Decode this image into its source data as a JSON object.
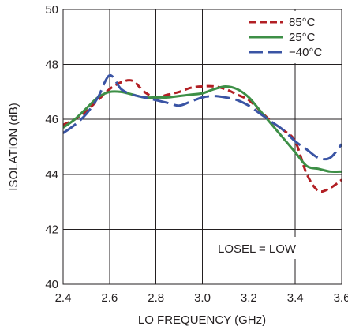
{
  "chart_data": {
    "type": "line",
    "xlabel": "LO FREQUENCY (GHz)",
    "ylabel": "ISOLATION (dB)",
    "xlim": [
      2.4,
      3.6
    ],
    "ylim": [
      40,
      50
    ],
    "xticks": [
      "2.4",
      "2.6",
      "2.8",
      "3.0",
      "3.2",
      "3.4",
      "3.6"
    ],
    "yticks": [
      "40",
      "42",
      "44",
      "46",
      "48",
      "50"
    ],
    "grid": true,
    "legend_position": "top-right",
    "annotation": "LOSEL = LOW",
    "series": [
      {
        "name": "85°C",
        "color": "#b21f24",
        "dash": "dashed",
        "x": [
          2.4,
          2.45,
          2.5,
          2.55,
          2.6,
          2.65,
          2.7,
          2.75,
          2.8,
          2.85,
          2.9,
          2.95,
          3.0,
          3.05,
          3.1,
          3.15,
          3.2,
          3.25,
          3.3,
          3.35,
          3.4,
          3.45,
          3.5,
          3.55,
          3.6
        ],
        "values": [
          45.8,
          46.0,
          46.3,
          46.7,
          47.1,
          47.35,
          47.4,
          47.0,
          46.8,
          46.9,
          47.0,
          47.15,
          47.2,
          47.2,
          47.1,
          46.9,
          46.7,
          46.3,
          45.9,
          45.6,
          45.2,
          44.0,
          43.4,
          43.5,
          43.8
        ]
      },
      {
        "name": "25°C",
        "color": "#3d8f46",
        "dash": "solid",
        "x": [
          2.4,
          2.45,
          2.5,
          2.55,
          2.6,
          2.65,
          2.7,
          2.75,
          2.8,
          2.85,
          2.9,
          2.95,
          3.0,
          3.05,
          3.1,
          3.15,
          3.2,
          3.25,
          3.3,
          3.35,
          3.4,
          3.45,
          3.5,
          3.55,
          3.6
        ],
        "values": [
          45.7,
          46.0,
          46.4,
          46.8,
          47.0,
          47.0,
          46.9,
          46.8,
          46.8,
          46.8,
          46.85,
          46.9,
          46.95,
          47.1,
          47.2,
          47.1,
          46.8,
          46.3,
          45.8,
          45.3,
          44.8,
          44.3,
          44.2,
          44.1,
          44.1
        ]
      },
      {
        "name": "−40°C",
        "color": "#3a54a4",
        "dash": "long-dash",
        "x": [
          2.4,
          2.45,
          2.5,
          2.55,
          2.6,
          2.65,
          2.7,
          2.75,
          2.8,
          2.85,
          2.9,
          2.95,
          3.0,
          3.05,
          3.1,
          3.15,
          3.2,
          3.25,
          3.3,
          3.35,
          3.4,
          3.45,
          3.5,
          3.55,
          3.6
        ],
        "values": [
          45.5,
          45.8,
          46.2,
          46.8,
          47.6,
          47.1,
          46.9,
          46.8,
          46.7,
          46.6,
          46.5,
          46.65,
          46.8,
          46.85,
          46.8,
          46.7,
          46.5,
          46.2,
          45.9,
          45.6,
          45.2,
          44.9,
          44.6,
          44.6,
          45.1
        ]
      }
    ]
  }
}
